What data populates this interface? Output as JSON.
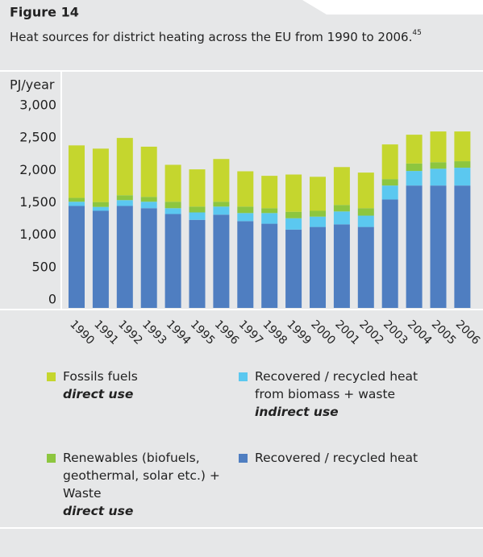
{
  "chart_data": {
    "type": "stacked-bar",
    "figure_label": "Figure 14",
    "subtitle": "Heat sources for district heating across the EU from 1990 to 2006.",
    "footnote": "45",
    "y_label": "PJ/year",
    "categories": [
      "1990",
      "1991",
      "1992",
      "1993",
      "1994",
      "1995",
      "1996",
      "1997",
      "1998",
      "1999",
      "2000",
      "2001",
      "2002",
      "2003",
      "2004",
      "2005",
      "2006"
    ],
    "ylim": [
      0,
      3000
    ],
    "yticks": [
      0,
      500,
      {
        "value": 1000,
        "label": "1,000"
      },
      {
        "value": 1500,
        "label": "1,500"
      },
      {
        "value": 2000,
        "label": "2,000"
      },
      {
        "value": 2500,
        "label": "2,500"
      },
      {
        "value": 3000,
        "label": "3,000"
      }
    ],
    "series": [
      {
        "name": "Recovered / recycled heat",
        "color": "#4f7ec1",
        "values": [
          1575,
          1500,
          1575,
          1540,
          1450,
          1360,
          1440,
          1340,
          1300,
          1210,
          1250,
          1290,
          1250,
          1675,
          1890,
          1890,
          1890
        ]
      },
      {
        "name": "Recovered / recycled heat from biomass + waste",
        "note": "indirect use",
        "color": "#5bc8f0",
        "values": [
          65,
          60,
          90,
          100,
          90,
          115,
          125,
          125,
          165,
          175,
          160,
          200,
          175,
          215,
          225,
          260,
          275
        ]
      },
      {
        "name": "Renewables (biofuels, geothermal, solar etc.) + Waste",
        "note": "direct use",
        "color": "#8dc63f",
        "values": [
          60,
          75,
          75,
          75,
          100,
          90,
          75,
          100,
          75,
          100,
          90,
          100,
          115,
          100,
          115,
          100,
          100
        ]
      },
      {
        "name": "Fossils fuels",
        "note": "direct use",
        "color": "#c5d62e",
        "values": [
          810,
          825,
          885,
          775,
          570,
          575,
          660,
          545,
          500,
          575,
          525,
          585,
          550,
          535,
          445,
          475,
          460
        ]
      }
    ]
  }
}
